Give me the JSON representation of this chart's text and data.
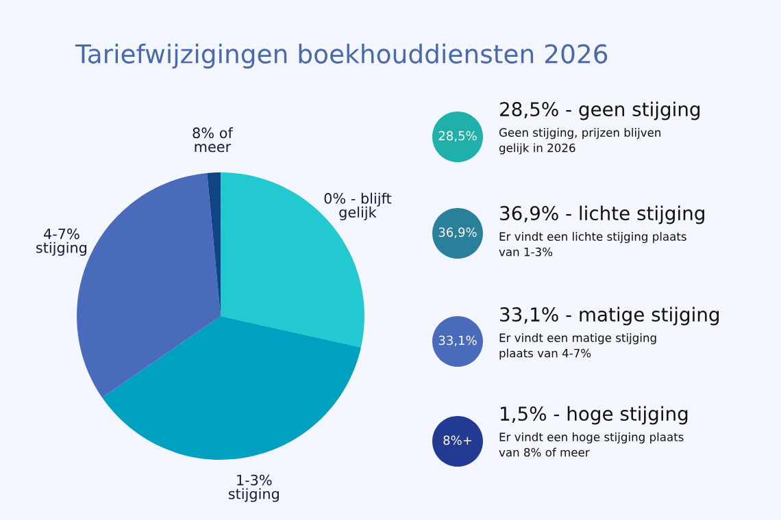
{
  "chart_data": [
    {
      "type": "pie",
      "title": "Tariefwijzigingen boekhouddiensten 2026",
      "categories": [
        "0% - blijft gelijk",
        "1-3% stijging",
        "4-7% stijging",
        "8% of meer"
      ],
      "values": [
        28.5,
        36.9,
        33.1,
        1.5
      ],
      "colors": [
        "#22c9d0",
        "#00a0c0",
        "#4a6bbc",
        "#0f4585"
      ]
    },
    {
      "type": "other",
      "colors": [
        "#1fb0ab",
        "#2a7f9b",
        "#4a6bbc",
        "#233a92"
      ],
      "annotations": [
        "28,5%",
        "28,5% - geen stijging",
        "Geen stijging, prijzen blijven gelijk in 2026",
        "36,9%",
        "36,9% - lichte stijging",
        "Er vindt een lichte stijging plaats van 1-3%",
        "33,1%",
        "33,1% - matige stijging",
        "Er vindt een matige stijging plaats van 4-7%",
        "8%+",
        "1,5% - hoge stijging",
        "Er vindt een hoge stijging plaats van 8% of meer"
      ]
    }
  ]
}
